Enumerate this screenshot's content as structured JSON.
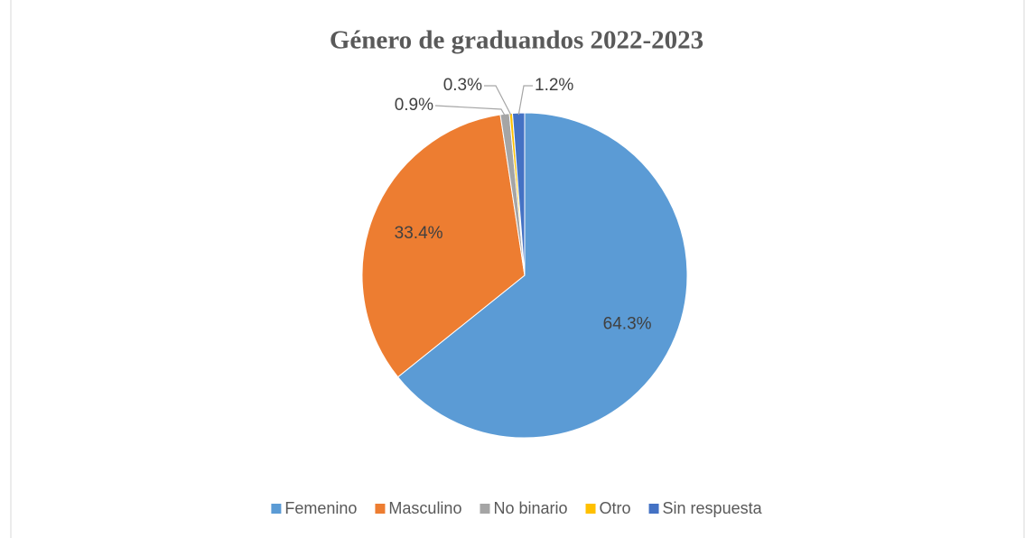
{
  "chart_data": {
    "type": "pie",
    "title": "Género de graduandos 2022-2023",
    "categories": [
      "Femenino",
      "Masculino",
      "No binario",
      "Otro",
      "Sin respuesta"
    ],
    "values": [
      64.3,
      33.4,
      0.9,
      0.3,
      1.2
    ],
    "value_labels": [
      "64.3%",
      "33.4%",
      "0.9%",
      "0.3%",
      "1.2%"
    ],
    "colors": [
      "#5b9bd5",
      "#ed7d31",
      "#a5a5a5",
      "#ffc000",
      "#4472c4"
    ],
    "legend": "bottom"
  }
}
